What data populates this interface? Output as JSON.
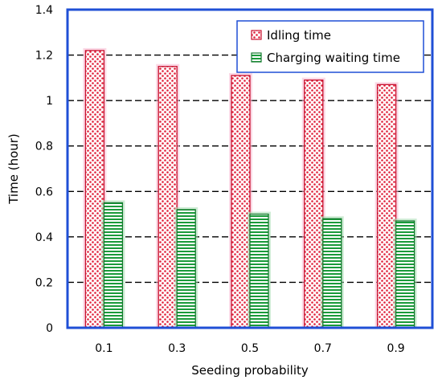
{
  "chart_data": {
    "type": "bar",
    "categories": [
      "0.1",
      "0.3",
      "0.5",
      "0.7",
      "0.9"
    ],
    "series": [
      {
        "name": "Idling time",
        "values": [
          1.22,
          1.15,
          1.11,
          1.09,
          1.07
        ],
        "fill": "#ffffff",
        "pattern_color": "#e0203a",
        "stroke": "#c8102e",
        "glow": "#f7b8cf"
      },
      {
        "name": "Charging waiting time",
        "values": [
          0.55,
          0.52,
          0.5,
          0.48,
          0.47
        ],
        "fill": "#ffffff",
        "pattern_color": "#1a9a3a",
        "stroke": "#117a2c",
        "glow": "#a7dcb2"
      }
    ],
    "title": "",
    "xlabel": "Seeding probability",
    "ylabel": "Time (hour)",
    "ylim": [
      0,
      1.4
    ],
    "yticks": [
      "0",
      "0.2",
      "0.4",
      "0.6",
      "0.8",
      "1",
      "1.2",
      "1.4"
    ],
    "grid": "horizontal-dashed",
    "legend": "top-right",
    "frame_color": "#1f4fd6"
  }
}
